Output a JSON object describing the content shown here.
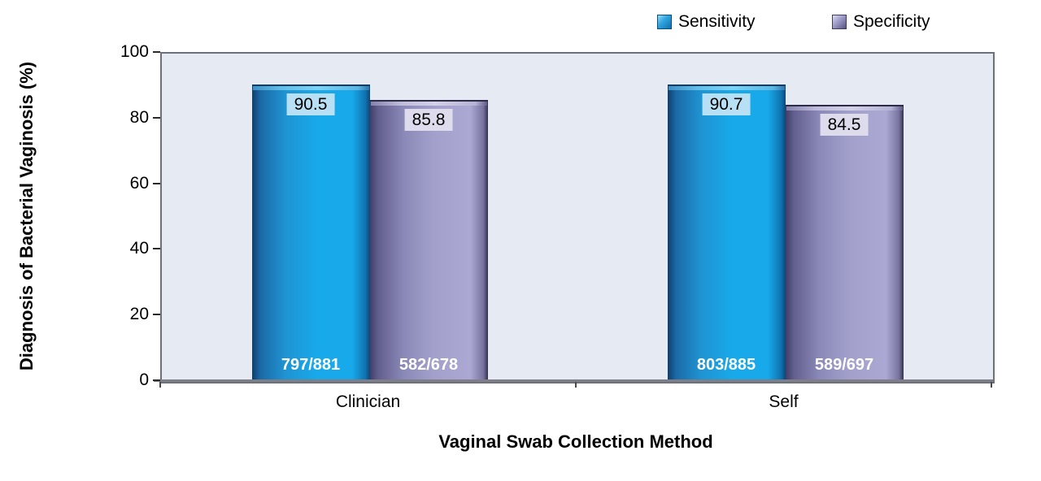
{
  "chart_data": {
    "type": "bar",
    "title": "",
    "xlabel": "Vaginal Swab Collection Method",
    "ylabel": "Diagnosis of Bacterial Vaginosis (%)",
    "categories": [
      "Clinician",
      "Self"
    ],
    "series": [
      {
        "name": "Sensitivity",
        "values": [
          90.5,
          90.7
        ],
        "fractions": [
          "797/881",
          "803/885"
        ],
        "color": "#18A9EA",
        "edge_color": "#0F3E6C",
        "label_bg": "#B7E0F4"
      },
      {
        "name": "Specificity",
        "values": [
          85.8,
          84.5
        ],
        "fractions": [
          "582/678",
          "589/697"
        ],
        "color": "#A5A3CF",
        "edge_color": "#413F66",
        "label_bg": "#DDDBEC"
      }
    ],
    "ylim": [
      0,
      100
    ],
    "yticks": [
      0,
      20,
      40,
      60,
      80,
      100
    ],
    "grid": false,
    "legend_position": "top-right",
    "plot_bg": "#E6EAF2"
  }
}
